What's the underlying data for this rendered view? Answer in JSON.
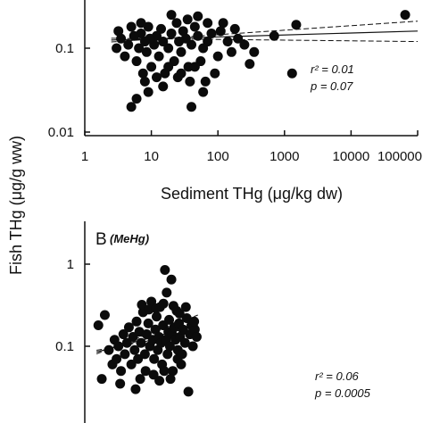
{
  "figure": {
    "shared_ylabel": "Fish THg (μg/g ww)"
  },
  "chart_data": [
    {
      "type": "scatter",
      "panel_id": "A",
      "title": "",
      "xlabel": "Sediment THg (μg/kg dw)",
      "ylabel": "Fish THg (μg/g ww)",
      "xscale": "log",
      "yscale": "log",
      "xlim": [
        1,
        100000
      ],
      "ylim_visible": [
        0.01,
        0.4
      ],
      "x_ticks": [
        1,
        10,
        100,
        1000,
        10000,
        100000
      ],
      "x_tick_labels": [
        "1",
        "10",
        "100",
        "1000",
        "10000",
        "100000"
      ],
      "y_ticks": [
        0.01,
        0.1
      ],
      "y_tick_labels": [
        "0.01",
        "0.1"
      ],
      "stats": {
        "r2": "r² = 0.01",
        "p": "p = 0.07"
      },
      "regression": {
        "x": [
          2.5,
          100000
        ],
        "y": [
          0.125,
          0.16
        ],
        "ci_upper_end": 0.21,
        "ci_lower_end": 0.12
      },
      "points": [
        [
          65000,
          0.25
        ],
        [
          1500,
          0.19
        ],
        [
          1300,
          0.05
        ],
        [
          700,
          0.14
        ],
        [
          350,
          0.09
        ],
        [
          300,
          0.065
        ],
        [
          250,
          0.11
        ],
        [
          200,
          0.13
        ],
        [
          180,
          0.17
        ],
        [
          120,
          0.2
        ],
        [
          100,
          0.08
        ],
        [
          90,
          0.05
        ],
        [
          80,
          0.15
        ],
        [
          70,
          0.12
        ],
        [
          60,
          0.1
        ],
        [
          55,
          0.07
        ],
        [
          50,
          0.14
        ],
        [
          45,
          0.18
        ],
        [
          40,
          0.11
        ],
        [
          38,
          0.04
        ],
        [
          36,
          0.06
        ],
        [
          33,
          0.13
        ],
        [
          30,
          0.16
        ],
        [
          28,
          0.09
        ],
        [
          26,
          0.12
        ],
        [
          24,
          0.2
        ],
        [
          22,
          0.07
        ],
        [
          20,
          0.15
        ],
        [
          18,
          0.1
        ],
        [
          16,
          0.05
        ],
        [
          15,
          0.12
        ],
        [
          14,
          0.17
        ],
        [
          13,
          0.08
        ],
        [
          12,
          0.14
        ],
        [
          11,
          0.11
        ],
        [
          10,
          0.06
        ],
        [
          9.5,
          0.13
        ],
        [
          9,
          0.18
        ],
        [
          8.5,
          0.09
        ],
        [
          8,
          0.12
        ],
        [
          7.5,
          0.05
        ],
        [
          7,
          0.15
        ],
        [
          6.5,
          0.1
        ],
        [
          6,
          0.07
        ],
        [
          5.5,
          0.14
        ],
        [
          5,
          0.02
        ],
        [
          4.5,
          0.11
        ],
        [
          4,
          0.08
        ],
        [
          3.5,
          0.13
        ],
        [
          3.2,
          0.16
        ],
        [
          3,
          0.1
        ],
        [
          6,
          0.025
        ],
        [
          9,
          0.03
        ],
        [
          15,
          0.035
        ],
        [
          25,
          0.045
        ],
        [
          40,
          0.02
        ],
        [
          60,
          0.03
        ],
        [
          8,
          0.04
        ],
        [
          12,
          0.045
        ],
        [
          20,
          0.25
        ],
        [
          35,
          0.22
        ],
        [
          50,
          0.24
        ],
        [
          70,
          0.2
        ],
        [
          110,
          0.16
        ],
        [
          140,
          0.12
        ],
        [
          160,
          0.09
        ],
        [
          5,
          0.18
        ],
        [
          7,
          0.2
        ],
        [
          18,
          0.06
        ],
        [
          28,
          0.05
        ],
        [
          45,
          0.06
        ],
        [
          65,
          0.04
        ]
      ]
    },
    {
      "type": "scatter",
      "panel_id": "B",
      "title": "B",
      "panel_tag": "(MeHg)",
      "ylabel": "Fish THg (μg/g ww)",
      "xscale": "log",
      "yscale": "log",
      "xlim": [
        1,
        100000
      ],
      "ylim_visible": [
        0.01,
        2.3
      ],
      "y_ticks": [
        0.1,
        1
      ],
      "y_tick_labels": [
        "0.1",
        "1"
      ],
      "stats": {
        "r2": "r² = 0.06",
        "p": "p = 0.0005"
      },
      "regression": {
        "x": [
          1.5,
          50
        ],
        "y": [
          0.085,
          0.18
        ],
        "ci_upper_end": 0.24,
        "ci_lower_end": 0.15
      },
      "points": [
        [
          1.6,
          0.18
        ],
        [
          1.8,
          0.04
        ],
        [
          2,
          0.24
        ],
        [
          2.3,
          0.09
        ],
        [
          2.6,
          0.06
        ],
        [
          2.8,
          0.12
        ],
        [
          3,
          0.07
        ],
        [
          3.2,
          0.1
        ],
        [
          3.5,
          0.05
        ],
        [
          3.8,
          0.14
        ],
        [
          4,
          0.08
        ],
        [
          4.3,
          0.11
        ],
        [
          4.6,
          0.17
        ],
        [
          5,
          0.06
        ],
        [
          5.3,
          0.13
        ],
        [
          5.6,
          0.09
        ],
        [
          6,
          0.2
        ],
        [
          6.3,
          0.07
        ],
        [
          6.6,
          0.15
        ],
        [
          7,
          0.11
        ],
        [
          7.5,
          0.26
        ],
        [
          8,
          0.08
        ],
        [
          8.5,
          0.14
        ],
        [
          9,
          0.19
        ],
        [
          9.5,
          0.1
        ],
        [
          10,
          0.35
        ],
        [
          10.5,
          0.12
        ],
        [
          11,
          0.07
        ],
        [
          11.5,
          0.16
        ],
        [
          12,
          0.23
        ],
        [
          12.5,
          0.09
        ],
        [
          13,
          0.13
        ],
        [
          13.5,
          0.3
        ],
        [
          14,
          0.11
        ],
        [
          14.5,
          0.06
        ],
        [
          15,
          0.18
        ],
        [
          16,
          0.85
        ],
        [
          16.5,
          0.12
        ],
        [
          17,
          0.45
        ],
        [
          17.5,
          0.08
        ],
        [
          18,
          0.15
        ],
        [
          18.5,
          0.21
        ],
        [
          19,
          0.1
        ],
        [
          20,
          0.65
        ],
        [
          20.5,
          0.14
        ],
        [
          21,
          0.05
        ],
        [
          22,
          0.17
        ],
        [
          23,
          0.12
        ],
        [
          24,
          0.27
        ],
        [
          25,
          0.09
        ],
        [
          26,
          0.19
        ],
        [
          27,
          0.13
        ],
        [
          28,
          0.06
        ],
        [
          30,
          0.16
        ],
        [
          32,
          0.11
        ],
        [
          34,
          0.22
        ],
        [
          36,
          0.028
        ],
        [
          38,
          0.14
        ],
        [
          40,
          0.18
        ],
        [
          42,
          0.1
        ],
        [
          45,
          0.16
        ],
        [
          48,
          0.13
        ],
        [
          6.8,
          0.04
        ],
        [
          8.2,
          0.05
        ],
        [
          10.8,
          0.045
        ],
        [
          13.2,
          0.038
        ],
        [
          15.6,
          0.05
        ],
        [
          19.4,
          0.04
        ],
        [
          24.8,
          0.07
        ],
        [
          29,
          0.08
        ],
        [
          3.4,
          0.035
        ],
        [
          5.8,
          0.03
        ],
        [
          7.2,
          0.32
        ],
        [
          9.2,
          0.28
        ],
        [
          11.8,
          0.29
        ],
        [
          15.2,
          0.33
        ],
        [
          21.5,
          0.31
        ],
        [
          26.5,
          0.25
        ],
        [
          33,
          0.3
        ],
        [
          44,
          0.2
        ]
      ]
    }
  ]
}
